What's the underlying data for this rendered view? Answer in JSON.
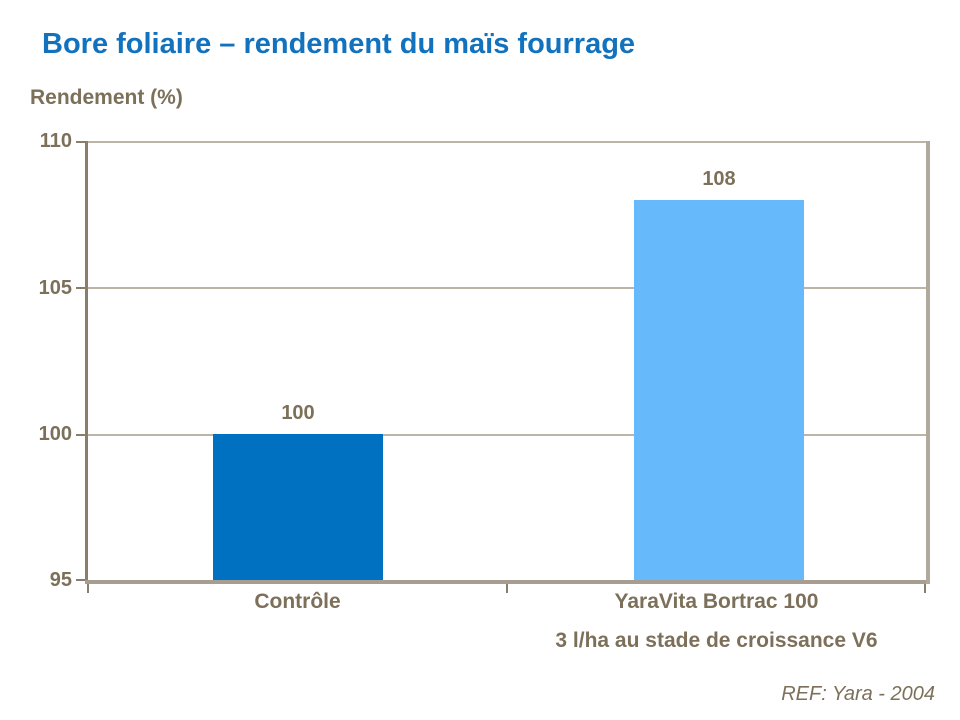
{
  "slide": {
    "title": "Bore foliaire – rendement du maïs fourrage",
    "footer": "REF: Yara - 2004"
  },
  "chart_data": {
    "type": "bar",
    "title": "Bore foliaire – rendement du maïs fourrage",
    "xlabel": "",
    "ylabel": "Rendement (%)",
    "categories": [
      "Contrôle",
      "YaraVita Bortrac 100"
    ],
    "category_subtitles": [
      "",
      "3 l/ha au stade de croissance V6"
    ],
    "values": [
      100,
      108
    ],
    "data_labels": [
      "100",
      "108"
    ],
    "bar_colors": [
      "#0070c0",
      "#66b9fb"
    ],
    "ylim": [
      95,
      110
    ],
    "yticks": [
      "110",
      "105",
      "100",
      "95"
    ],
    "grid": "horizontal",
    "legend": "none",
    "colors": {
      "title_text": "#1272bd",
      "label_text": "#7d705a",
      "axis_line": "#8b7d6b",
      "gridline": "#bdb4a8"
    }
  }
}
